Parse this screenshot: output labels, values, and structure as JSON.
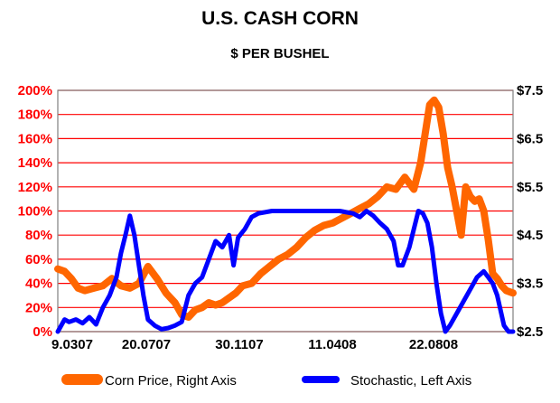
{
  "chart_data": {
    "type": "line",
    "title": "U.S. CASH CORN",
    "subtitle": "$ PER BUSHEL",
    "x_labels": [
      "9.0307",
      "20.0707",
      "30.1107",
      "11.0408",
      "22.0808"
    ],
    "y_left_ticks": [
      "0%",
      "20%",
      "40%",
      "60%",
      "80%",
      "100%",
      "120%",
      "140%",
      "160%",
      "180%",
      "200%"
    ],
    "y_left_range": [
      0,
      200
    ],
    "y_right_ticks": [
      "$2.5",
      "$3.5",
      "$4.5",
      "$5.5",
      "$6.5",
      "$7.5"
    ],
    "y_right_range": [
      2.5,
      7.5
    ],
    "grid": true,
    "legend_position": "bottom",
    "series": [
      {
        "name": "Corn Price, Right Axis",
        "axis": "right",
        "color": "#ff6600",
        "points": [
          [
            0,
            3.8
          ],
          [
            3,
            3.75
          ],
          [
            6,
            3.6
          ],
          [
            9,
            3.4
          ],
          [
            12,
            3.35
          ],
          [
            16,
            3.4
          ],
          [
            20,
            3.45
          ],
          [
            24,
            3.6
          ],
          [
            28,
            3.45
          ],
          [
            32,
            3.4
          ],
          [
            36,
            3.5
          ],
          [
            40,
            3.85
          ],
          [
            44,
            3.6
          ],
          [
            48,
            3.3
          ],
          [
            52,
            3.1
          ],
          [
            55,
            2.85
          ],
          [
            58,
            2.8
          ],
          [
            61,
            2.95
          ],
          [
            64,
            3.0
          ],
          [
            67,
            3.1
          ],
          [
            70,
            3.05
          ],
          [
            73,
            3.1
          ],
          [
            76,
            3.2
          ],
          [
            79,
            3.3
          ],
          [
            82,
            3.45
          ],
          [
            86,
            3.5
          ],
          [
            90,
            3.7
          ],
          [
            94,
            3.85
          ],
          [
            98,
            4.0
          ],
          [
            102,
            4.1
          ],
          [
            106,
            4.25
          ],
          [
            110,
            4.45
          ],
          [
            114,
            4.6
          ],
          [
            118,
            4.7
          ],
          [
            122,
            4.75
          ],
          [
            126,
            4.85
          ],
          [
            130,
            4.95
          ],
          [
            134,
            5.05
          ],
          [
            138,
            5.15
          ],
          [
            142,
            5.3
          ],
          [
            146,
            5.5
          ],
          [
            150,
            5.45
          ],
          [
            154,
            5.7
          ],
          [
            158,
            5.45
          ],
          [
            161,
            6.0
          ],
          [
            163,
            6.6
          ],
          [
            165,
            7.2
          ],
          [
            167,
            7.3
          ],
          [
            169,
            7.15
          ],
          [
            171,
            6.6
          ],
          [
            173,
            5.9
          ],
          [
            175,
            5.5
          ],
          [
            177,
            5.0
          ],
          [
            179,
            4.5
          ],
          [
            181,
            5.5
          ],
          [
            183,
            5.3
          ],
          [
            185,
            5.2
          ],
          [
            187,
            5.25
          ],
          [
            189,
            5.0
          ],
          [
            191,
            4.4
          ],
          [
            193,
            3.7
          ],
          [
            195,
            3.6
          ],
          [
            197,
            3.45
          ],
          [
            199,
            3.35
          ],
          [
            202,
            3.3
          ]
        ]
      },
      {
        "name": "Stochastic, Left Axis",
        "axis": "left",
        "color": "#0000ff",
        "points": [
          [
            0,
            0
          ],
          [
            3,
            10
          ],
          [
            5,
            8
          ],
          [
            8,
            10
          ],
          [
            11,
            7
          ],
          [
            14,
            12
          ],
          [
            17,
            6
          ],
          [
            20,
            20
          ],
          [
            23,
            30
          ],
          [
            26,
            45
          ],
          [
            28,
            65
          ],
          [
            30,
            80
          ],
          [
            32,
            96
          ],
          [
            34,
            80
          ],
          [
            36,
            55
          ],
          [
            38,
            30
          ],
          [
            40,
            10
          ],
          [
            43,
            5
          ],
          [
            46,
            2
          ],
          [
            49,
            3
          ],
          [
            52,
            5
          ],
          [
            55,
            8
          ],
          [
            58,
            30
          ],
          [
            61,
            40
          ],
          [
            64,
            45
          ],
          [
            67,
            60
          ],
          [
            70,
            75
          ],
          [
            73,
            70
          ],
          [
            76,
            80
          ],
          [
            78,
            55
          ],
          [
            80,
            78
          ],
          [
            83,
            85
          ],
          [
            86,
            95
          ],
          [
            89,
            98
          ],
          [
            95,
            100
          ],
          [
            105,
            100
          ],
          [
            115,
            100
          ],
          [
            125,
            100
          ],
          [
            131,
            98
          ],
          [
            134,
            95
          ],
          [
            137,
            100
          ],
          [
            140,
            96
          ],
          [
            143,
            90
          ],
          [
            146,
            85
          ],
          [
            149,
            75
          ],
          [
            151,
            55
          ],
          [
            153,
            55
          ],
          [
            156,
            70
          ],
          [
            158,
            85
          ],
          [
            160,
            100
          ],
          [
            162,
            98
          ],
          [
            164,
            90
          ],
          [
            166,
            70
          ],
          [
            168,
            40
          ],
          [
            170,
            15
          ],
          [
            172,
            0
          ],
          [
            174,
            5
          ],
          [
            177,
            15
          ],
          [
            180,
            25
          ],
          [
            183,
            35
          ],
          [
            186,
            45
          ],
          [
            189,
            50
          ],
          [
            191,
            45
          ],
          [
            193,
            40
          ],
          [
            195,
            30
          ],
          [
            198,
            5
          ],
          [
            200,
            0
          ],
          [
            202,
            0
          ]
        ]
      }
    ]
  }
}
